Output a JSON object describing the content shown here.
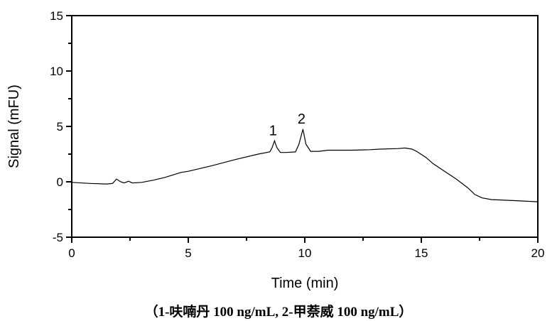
{
  "chart_data": {
    "type": "line",
    "xlabel": "Time (min)",
    "ylabel": "Signal (mFU)",
    "xlim": [
      0,
      20
    ],
    "ylim": [
      -5,
      15
    ],
    "xticks": [
      0,
      5,
      10,
      15,
      20
    ],
    "yticks": [
      -5,
      0,
      5,
      10,
      15
    ],
    "grid": false,
    "line_color": "#000000",
    "series": [
      {
        "x": [
          0,
          0.8,
          1.5,
          1.75,
          1.92,
          2.1,
          2.25,
          2.44,
          2.6,
          3.0,
          3.5,
          4.0,
          4.7,
          5.0,
          6.0,
          7.0,
          8.0,
          8.5,
          8.6,
          8.7,
          8.8,
          8.95,
          9.2,
          9.6,
          9.75,
          9.92,
          10.05,
          10.25,
          10.6,
          11.0,
          12.0,
          12.8,
          13.2,
          14.0,
          14.3,
          14.6,
          14.8,
          15.2,
          15.5,
          16.0,
          16.5,
          17.0,
          17.3,
          17.6,
          18.0,
          19.0,
          20.0
        ],
        "y": [
          -0.05,
          -0.15,
          -0.2,
          -0.15,
          0.25,
          0.0,
          -0.1,
          0.05,
          -0.1,
          -0.05,
          0.15,
          0.4,
          0.85,
          0.95,
          1.45,
          2.0,
          2.5,
          2.7,
          3.1,
          3.7,
          3.1,
          2.65,
          2.65,
          2.7,
          3.4,
          4.75,
          3.4,
          2.75,
          2.75,
          2.85,
          2.85,
          2.9,
          2.95,
          3.0,
          3.05,
          2.95,
          2.75,
          2.2,
          1.65,
          0.95,
          0.25,
          -0.55,
          -1.15,
          -1.45,
          -1.6,
          -1.7,
          -1.8
        ]
      }
    ],
    "annotations": [
      {
        "text": "1",
        "x": 8.7,
        "y": 3.7
      },
      {
        "text": "2",
        "x": 9.92,
        "y": 4.75
      }
    ]
  },
  "caption": "（1-呋喃丹  100 ng/mL, 2-甲萘威 100 ng/mL）"
}
